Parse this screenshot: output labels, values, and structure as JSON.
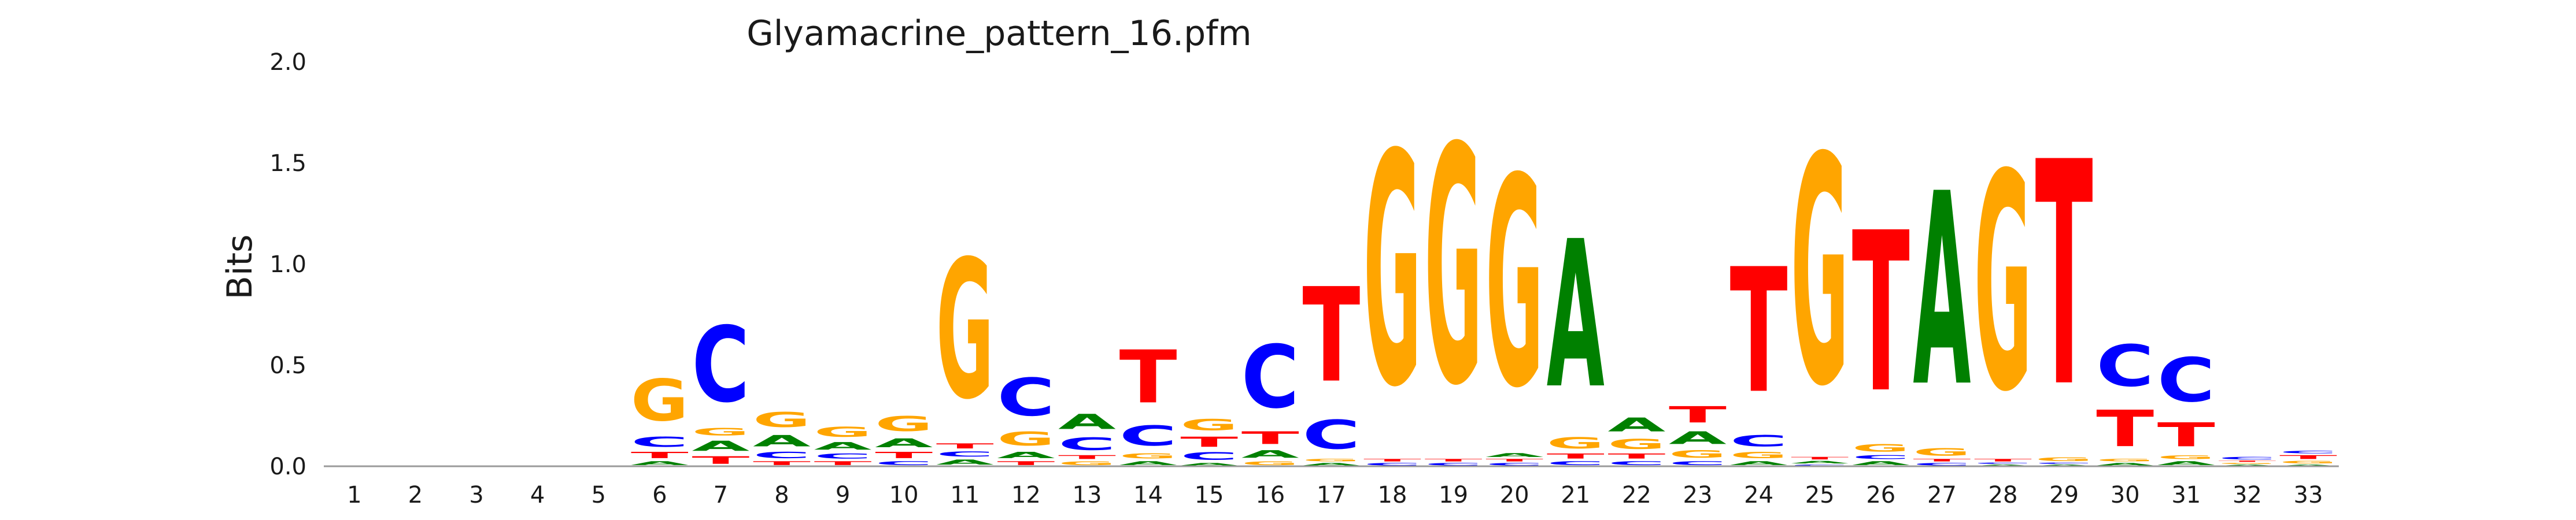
{
  "chart_data": {
    "type": "sequence-logo",
    "title": "Glyamacrine_pattern_16.pfm",
    "ylabel": "Bits",
    "xlabel": "",
    "ylim": [
      0,
      2.0
    ],
    "y_ticks": [
      "0.0",
      "0.5",
      "1.0",
      "1.5",
      "2.0"
    ],
    "y_tick_values": [
      0,
      0.5,
      1.0,
      1.5,
      2.0
    ],
    "positions": [
      "1",
      "2",
      "3",
      "4",
      "5",
      "6",
      "7",
      "8",
      "9",
      "10",
      "11",
      "12",
      "13",
      "14",
      "15",
      "16",
      "17",
      "18",
      "19",
      "20",
      "21",
      "22",
      "23",
      "24",
      "25",
      "26",
      "27",
      "28",
      "29",
      "30",
      "31",
      "32",
      "33"
    ],
    "colors": {
      "A": "#008000",
      "C": "#0000ff",
      "G": "#ffa500",
      "T": "#ff0000"
    },
    "columns": [
      [],
      [],
      [],
      [],
      [],
      [
        {
          "b": "A",
          "h": 0.03
        },
        {
          "b": "T",
          "h": 0.05
        },
        {
          "b": "C",
          "h": 0.08
        },
        {
          "b": "G",
          "h": 0.33
        }
      ],
      [
        {
          "b": "T",
          "h": 0.06
        },
        {
          "b": "A",
          "h": 0.08
        },
        {
          "b": "G",
          "h": 0.06
        },
        {
          "b": "C",
          "h": 0.6
        }
      ],
      [
        {
          "b": "T",
          "h": 0.03
        },
        {
          "b": "C",
          "h": 0.05
        },
        {
          "b": "A",
          "h": 0.09
        },
        {
          "b": "G",
          "h": 0.12
        }
      ],
      [
        {
          "b": "T",
          "h": 0.03
        },
        {
          "b": "C",
          "h": 0.04
        },
        {
          "b": "A",
          "h": 0.06
        },
        {
          "b": "G",
          "h": 0.08
        }
      ],
      [
        {
          "b": "C",
          "h": 0.03
        },
        {
          "b": "T",
          "h": 0.05
        },
        {
          "b": "A",
          "h": 0.07
        },
        {
          "b": "G",
          "h": 0.12
        }
      ],
      [
        {
          "b": "A",
          "h": 0.04
        },
        {
          "b": "C",
          "h": 0.04
        },
        {
          "b": "T",
          "h": 0.04
        },
        {
          "b": "G",
          "h": 1.1
        }
      ],
      [
        {
          "b": "T",
          "h": 0.03
        },
        {
          "b": "A",
          "h": 0.05
        },
        {
          "b": "G",
          "h": 0.11
        },
        {
          "b": "C",
          "h": 0.3
        }
      ],
      [
        {
          "b": "G",
          "h": 0.03
        },
        {
          "b": "T",
          "h": 0.03
        },
        {
          "b": "C",
          "h": 0.1
        },
        {
          "b": "A",
          "h": 0.12
        }
      ],
      [
        {
          "b": "A",
          "h": 0.03
        },
        {
          "b": "G",
          "h": 0.04
        },
        {
          "b": "C",
          "h": 0.16
        },
        {
          "b": "T",
          "h": 0.42
        }
      ],
      [
        {
          "b": "A",
          "h": 0.02
        },
        {
          "b": "C",
          "h": 0.06
        },
        {
          "b": "T",
          "h": 0.08
        },
        {
          "b": "G",
          "h": 0.09
        }
      ],
      [
        {
          "b": "G",
          "h": 0.03
        },
        {
          "b": "A",
          "h": 0.06
        },
        {
          "b": "T",
          "h": 0.1
        },
        {
          "b": "C",
          "h": 0.5
        }
      ],
      [
        {
          "b": "A",
          "h": 0.02
        },
        {
          "b": "G",
          "h": 0.02
        },
        {
          "b": "C",
          "h": 0.23
        },
        {
          "b": "T",
          "h": 0.75
        }
      ],
      [
        {
          "b": "C",
          "h": 0.02
        },
        {
          "b": "T",
          "h": 0.02
        },
        {
          "b": "G",
          "h": 1.84
        }
      ],
      [
        {
          "b": "C",
          "h": 0.02
        },
        {
          "b": "T",
          "h": 0.02
        },
        {
          "b": "G",
          "h": 1.88
        }
      ],
      [
        {
          "b": "C",
          "h": 0.02
        },
        {
          "b": "T",
          "h": 0.02
        },
        {
          "b": "A",
          "h": 0.03
        },
        {
          "b": "G",
          "h": 1.66
        }
      ],
      [
        {
          "b": "C",
          "h": 0.03
        },
        {
          "b": "T",
          "h": 0.04
        },
        {
          "b": "G",
          "h": 0.09
        },
        {
          "b": "A",
          "h": 1.17
        }
      ],
      [
        {
          "b": "C",
          "h": 0.03
        },
        {
          "b": "T",
          "h": 0.04
        },
        {
          "b": "G",
          "h": 0.08
        },
        {
          "b": "A",
          "h": 0.11
        }
      ],
      [
        {
          "b": "C",
          "h": 0.03
        },
        {
          "b": "G",
          "h": 0.06
        },
        {
          "b": "A",
          "h": 0.1
        },
        {
          "b": "T",
          "h": 0.13
        }
      ],
      [
        {
          "b": "A",
          "h": 0.03
        },
        {
          "b": "G",
          "h": 0.05
        },
        {
          "b": "C",
          "h": 0.09
        },
        {
          "b": "T",
          "h": 0.99
        }
      ],
      [
        {
          "b": "C",
          "h": 0.01
        },
        {
          "b": "A",
          "h": 0.02
        },
        {
          "b": "T",
          "h": 0.02
        },
        {
          "b": "G",
          "h": 1.81
        }
      ],
      [
        {
          "b": "A",
          "h": 0.03
        },
        {
          "b": "C",
          "h": 0.03
        },
        {
          "b": "G",
          "h": 0.06
        },
        {
          "b": "T",
          "h": 1.27
        }
      ],
      [
        {
          "b": "C",
          "h": 0.02
        },
        {
          "b": "T",
          "h": 0.02
        },
        {
          "b": "G",
          "h": 0.06
        },
        {
          "b": "A",
          "h": 1.53
        }
      ],
      [
        {
          "b": "A",
          "h": 0.01
        },
        {
          "b": "C",
          "h": 0.01
        },
        {
          "b": "T",
          "h": 0.02
        },
        {
          "b": "G",
          "h": 1.72
        }
      ],
      [
        {
          "b": "A",
          "h": 0.01
        },
        {
          "b": "C",
          "h": 0.01
        },
        {
          "b": "G",
          "h": 0.03
        },
        {
          "b": "T",
          "h": 1.78
        }
      ],
      [
        {
          "b": "A",
          "h": 0.02
        },
        {
          "b": "G",
          "h": 0.02
        },
        {
          "b": "T",
          "h": 0.29
        },
        {
          "b": "C",
          "h": 0.33
        }
      ],
      [
        {
          "b": "A",
          "h": 0.03
        },
        {
          "b": "G",
          "h": 0.03
        },
        {
          "b": "T",
          "h": 0.19
        },
        {
          "b": "C",
          "h": 0.35
        }
      ],
      [
        {
          "b": "A",
          "h": 0.01
        },
        {
          "b": "G",
          "h": 0.01
        },
        {
          "b": "T",
          "h": 0.01
        },
        {
          "b": "C",
          "h": 0.02
        }
      ],
      [
        {
          "b": "A",
          "h": 0.01
        },
        {
          "b": "G",
          "h": 0.02
        },
        {
          "b": "T",
          "h": 0.03
        },
        {
          "b": "C",
          "h": 0.02
        }
      ]
    ]
  }
}
